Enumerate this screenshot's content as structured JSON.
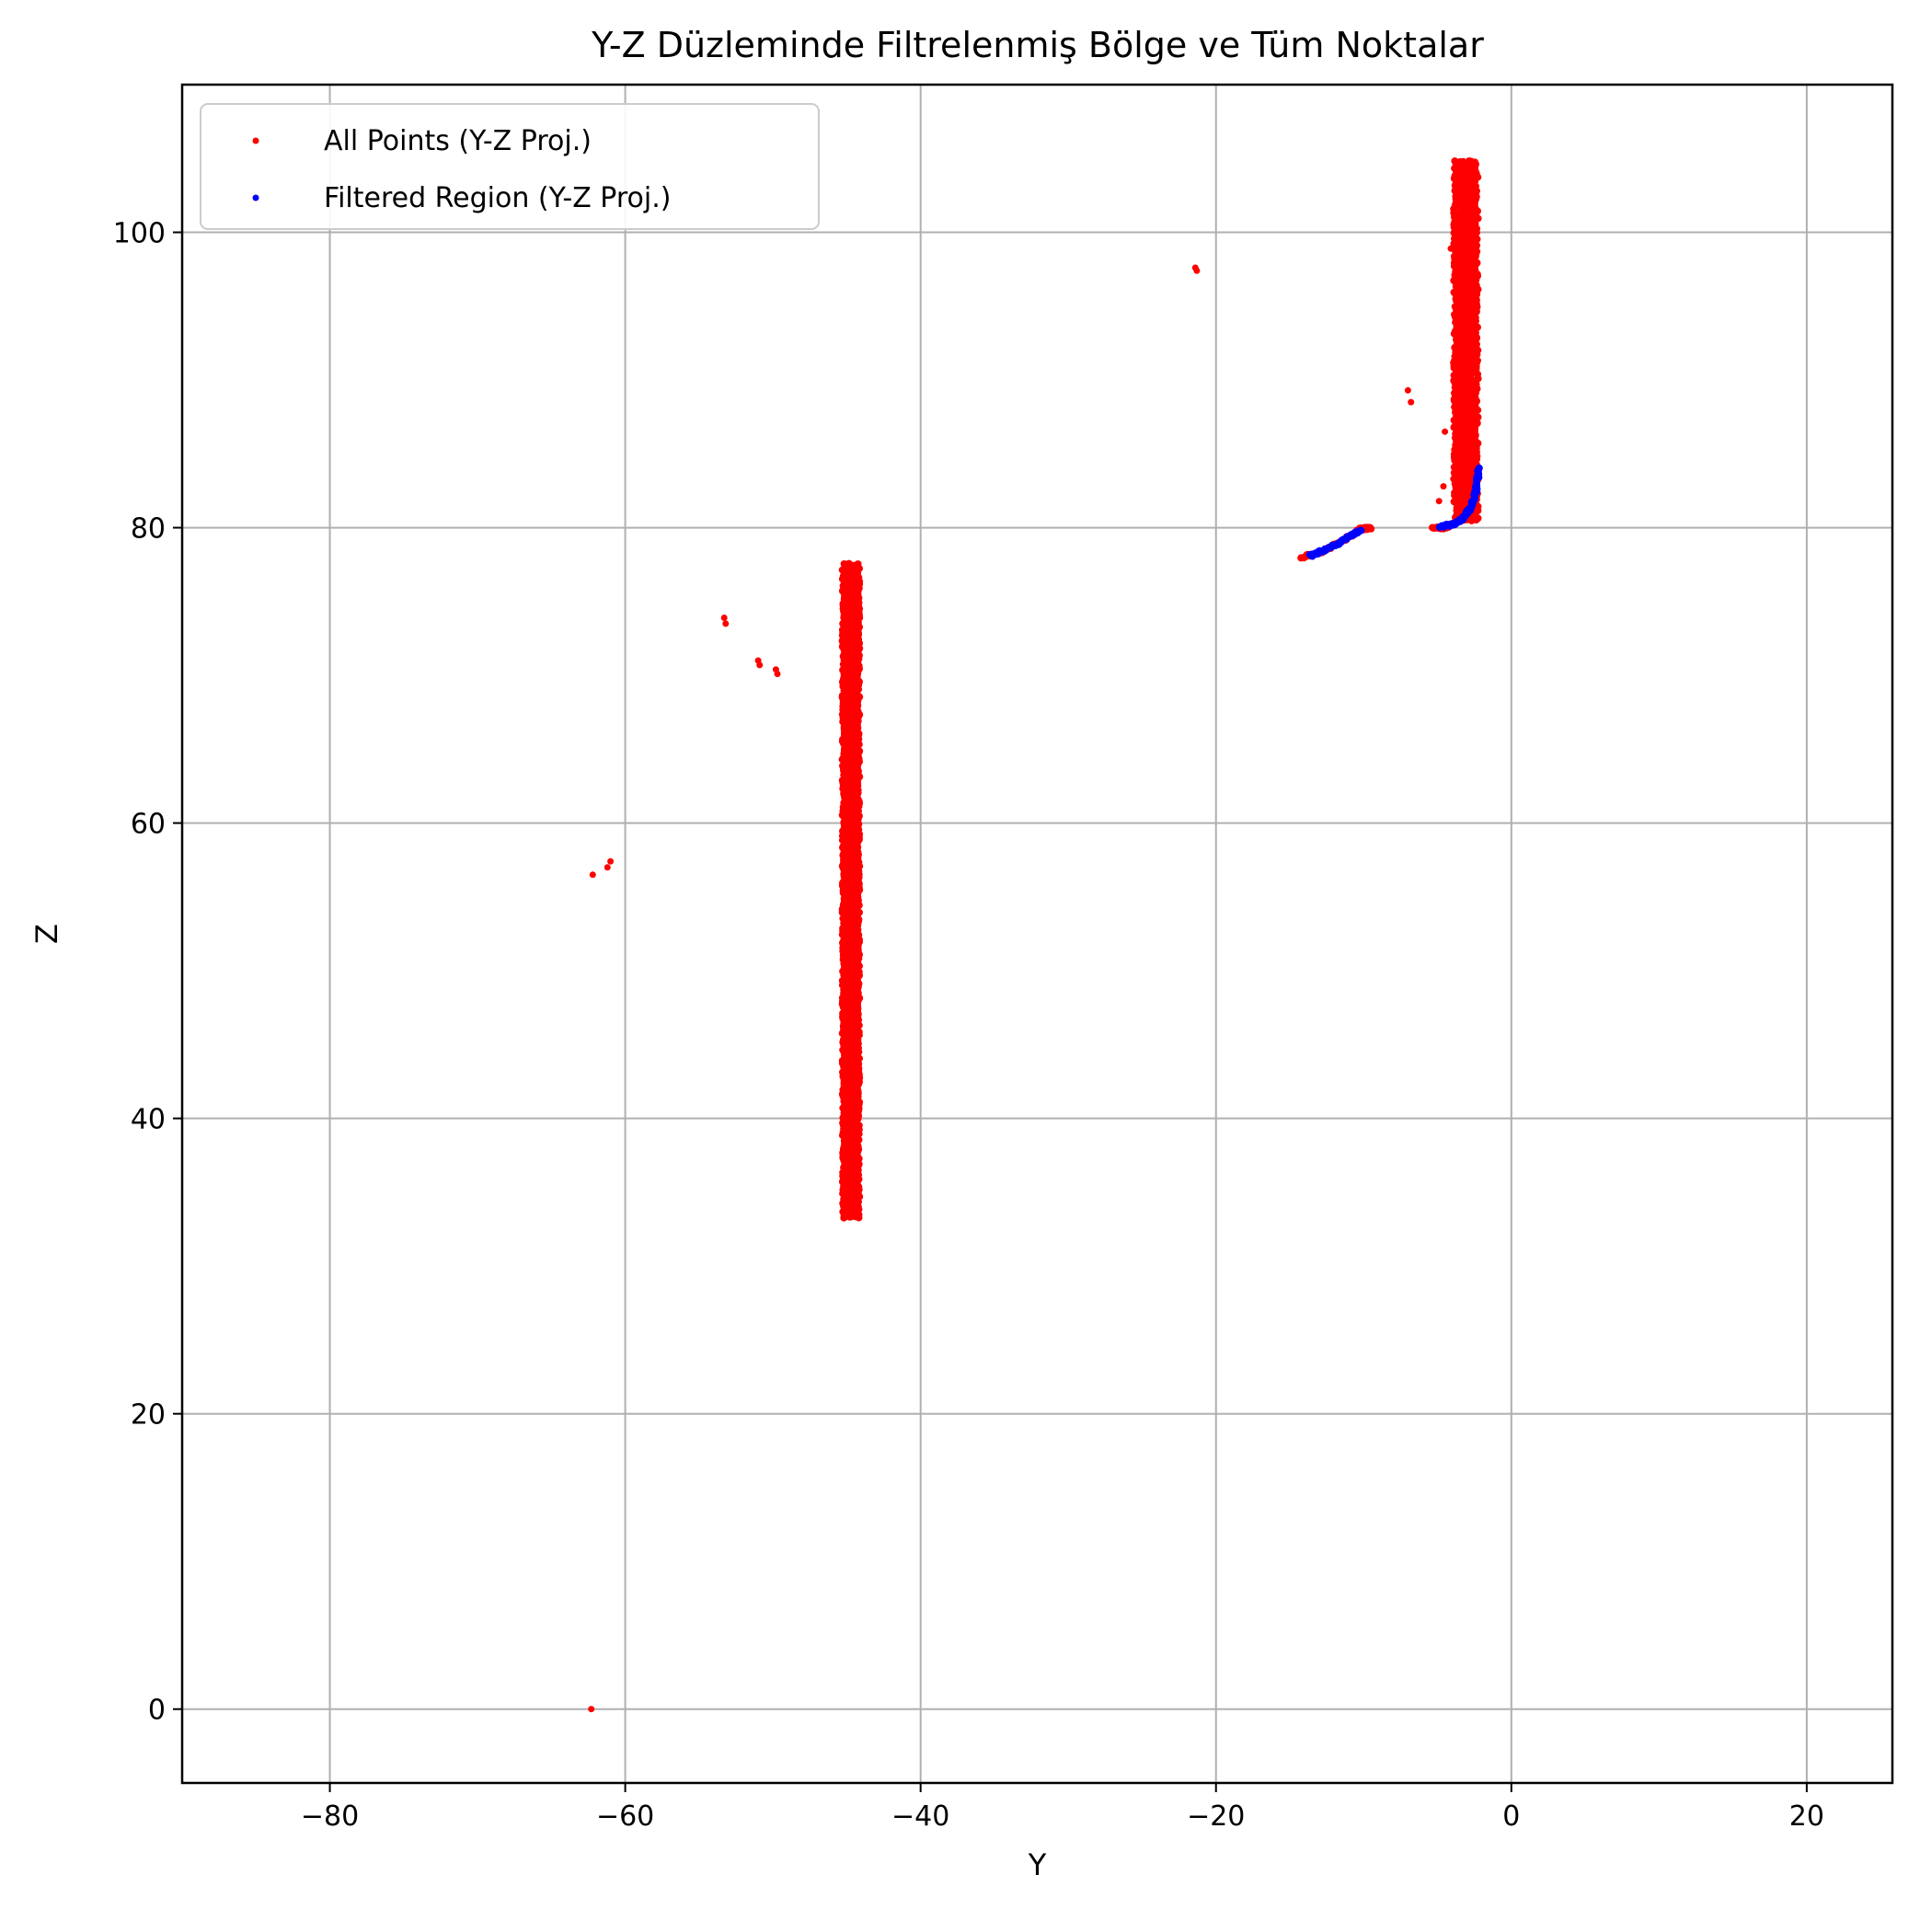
{
  "chart_data": {
    "type": "scatter",
    "title": "Y-Z Düzleminde Filtrelenmiş Bölge ve Tüm Noktalar",
    "xlabel": "Y",
    "ylabel": "Z",
    "xlim": [
      -90,
      25.8
    ],
    "ylim": [
      -5,
      110
    ],
    "xticks": [
      -80,
      -60,
      -40,
      -20,
      0,
      20
    ],
    "xtick_labels": [
      "−80",
      "−60",
      "−40",
      "−20",
      "0",
      "20"
    ],
    "yticks": [
      0,
      20,
      40,
      60,
      80,
      100
    ],
    "ytick_labels": [
      "0",
      "20",
      "40",
      "60",
      "80",
      "100"
    ],
    "grid": true,
    "legend_position": "top-left",
    "series": [
      {
        "name": "All Points (Y-Z Proj.)",
        "color": "#ff0000",
        "clusters": [
          {
            "kind": "band",
            "y_range": [
              -45.3,
              -44.1
            ],
            "z_range": [
              33.3,
              77.5
            ]
          },
          {
            "kind": "band",
            "y_range": [
              -3.9,
              -2.2
            ],
            "z_range": [
              80.5,
              104.8
            ]
          },
          {
            "kind": "curve",
            "points": [
              [
                -14.2,
                78.0
              ],
              [
                -13.0,
                78.3
              ],
              [
                -12.0,
                78.8
              ],
              [
                -11.0,
                79.4
              ],
              [
                -10.2,
                79.9
              ],
              [
                -9.5,
                80.0
              ]
            ]
          },
          {
            "kind": "curve",
            "points": [
              [
                -5.3,
                80.0
              ],
              [
                -4.5,
                80.0
              ],
              [
                -3.8,
                80.3
              ],
              [
                -3.0,
                81.0
              ],
              [
                -2.5,
                82.2
              ],
              [
                -2.2,
                84.0
              ]
            ]
          },
          {
            "kind": "points",
            "points": [
              [
                -62.3,
                0.0
              ],
              [
                -62.2,
                56.5
              ],
              [
                -61.2,
                57.0
              ],
              [
                -61.0,
                57.4
              ],
              [
                -53.3,
                73.9
              ],
              [
                -53.2,
                73.5
              ],
              [
                -51.0,
                71.0
              ],
              [
                -50.9,
                70.7
              ],
              [
                -49.8,
                70.4
              ],
              [
                -49.7,
                70.1
              ],
              [
                -21.4,
                97.6
              ],
              [
                -21.3,
                97.4
              ],
              [
                -7.0,
                89.3
              ],
              [
                -6.8,
                88.5
              ],
              [
                -4.5,
                86.5
              ],
              [
                -4.6,
                82.8
              ],
              [
                -4.9,
                81.8
              ],
              [
                -4.1,
                98.9
              ]
            ]
          }
        ]
      },
      {
        "name": "Filtered Region (Y-Z Proj.)",
        "color": "#0000ff",
        "clusters": [
          {
            "kind": "curve",
            "points": [
              [
                -13.6,
                78.1
              ],
              [
                -12.6,
                78.5
              ],
              [
                -11.6,
                79.0
              ],
              [
                -10.8,
                79.5
              ],
              [
                -10.2,
                79.8
              ]
            ]
          },
          {
            "kind": "curve",
            "points": [
              [
                -4.8,
                80.1
              ],
              [
                -4.0,
                80.2
              ],
              [
                -3.3,
                80.6
              ],
              [
                -2.8,
                81.3
              ],
              [
                -2.4,
                82.4
              ],
              [
                -2.2,
                84.0
              ]
            ]
          }
        ]
      }
    ]
  }
}
